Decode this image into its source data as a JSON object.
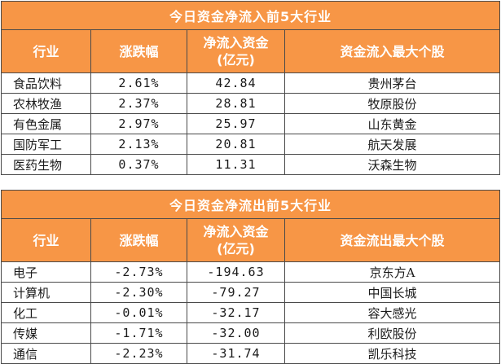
{
  "inflow": {
    "title": "今日资金净流入前5大行业",
    "headers": [
      "行业",
      "涨跌幅",
      "净流入资金\n(亿元)",
      "资金流入最大个股"
    ],
    "rows": [
      [
        "食品饮料",
        "2.61%",
        "42.84",
        "贵州茅台"
      ],
      [
        "农林牧渔",
        "2.37%",
        "28.81",
        "牧原股份"
      ],
      [
        "有色金属",
        "2.97%",
        "25.97",
        "山东黄金"
      ],
      [
        "国防军工",
        "2.13%",
        "20.81",
        "航天发展"
      ],
      [
        "医药生物",
        "0.37%",
        "11.31",
        "沃森生物"
      ]
    ]
  },
  "outflow": {
    "title": "今日资金净流出前5大行业",
    "headers": [
      "行业",
      "涨跌幅",
      "净流入资金\n(亿元)",
      "资金流出最大个股"
    ],
    "rows": [
      [
        "电子",
        "-2.73%",
        "-194.63",
        "京东方A"
      ],
      [
        "计算机",
        "-2.30%",
        "-79.27",
        "中国长城"
      ],
      [
        "化工",
        "-0.01%",
        "-32.17",
        "容大感光"
      ],
      [
        "传媒",
        "-1.71%",
        "-32.00",
        "利欧股份"
      ],
      [
        "通信",
        "-2.23%",
        "-31.74",
        "凯乐科技"
      ]
    ]
  },
  "colors": {
    "header_bg": "#f79646",
    "header_text": "#ffffff",
    "border": "#4a4a4a"
  }
}
